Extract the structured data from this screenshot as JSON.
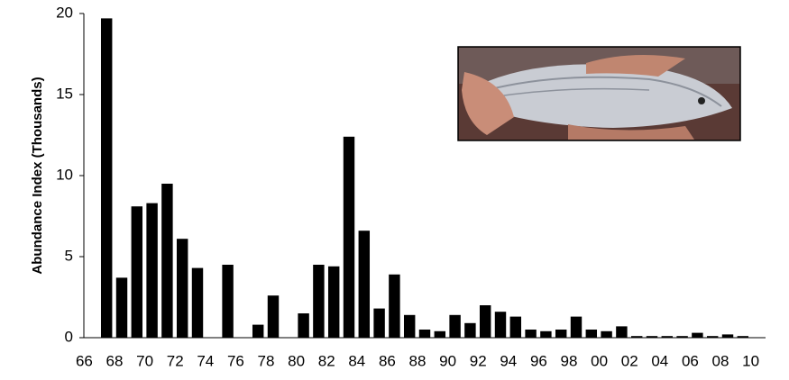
{
  "chart_data": {
    "type": "bar",
    "y_label": "Abundance Index   (Thousands)",
    "categories": [
      "66",
      null,
      "68",
      null,
      "70",
      null,
      "72",
      null,
      "74",
      null,
      "76",
      null,
      "78",
      null,
      "80",
      null,
      "82",
      null,
      "84",
      null,
      "86",
      null,
      "88",
      null,
      "90",
      null,
      "92",
      null,
      "94",
      null,
      "96",
      null,
      "98",
      null,
      "00",
      null,
      "02",
      null,
      "04",
      null,
      "06",
      null,
      "08",
      null,
      "10"
    ],
    "values": [
      null,
      19.7,
      3.7,
      8.1,
      8.3,
      9.5,
      6.1,
      4.3,
      0,
      4.5,
      0,
      0.8,
      2.6,
      0,
      1.5,
      4.5,
      4.4,
      12.4,
      6.6,
      1.8,
      3.9,
      1.4,
      0.5,
      0.4,
      1.4,
      0.9,
      2.0,
      1.6,
      1.3,
      0.5,
      0.4,
      0.5,
      1.3,
      0.5,
      0.4,
      0.7,
      0.1,
      0.1,
      0.1,
      0.1,
      0.3,
      0.1,
      0.2,
      0.1,
      null
    ],
    "color": "#000000",
    "ylim": [
      0,
      20
    ],
    "yticks": [
      0,
      5,
      10,
      15,
      20
    ]
  }
}
